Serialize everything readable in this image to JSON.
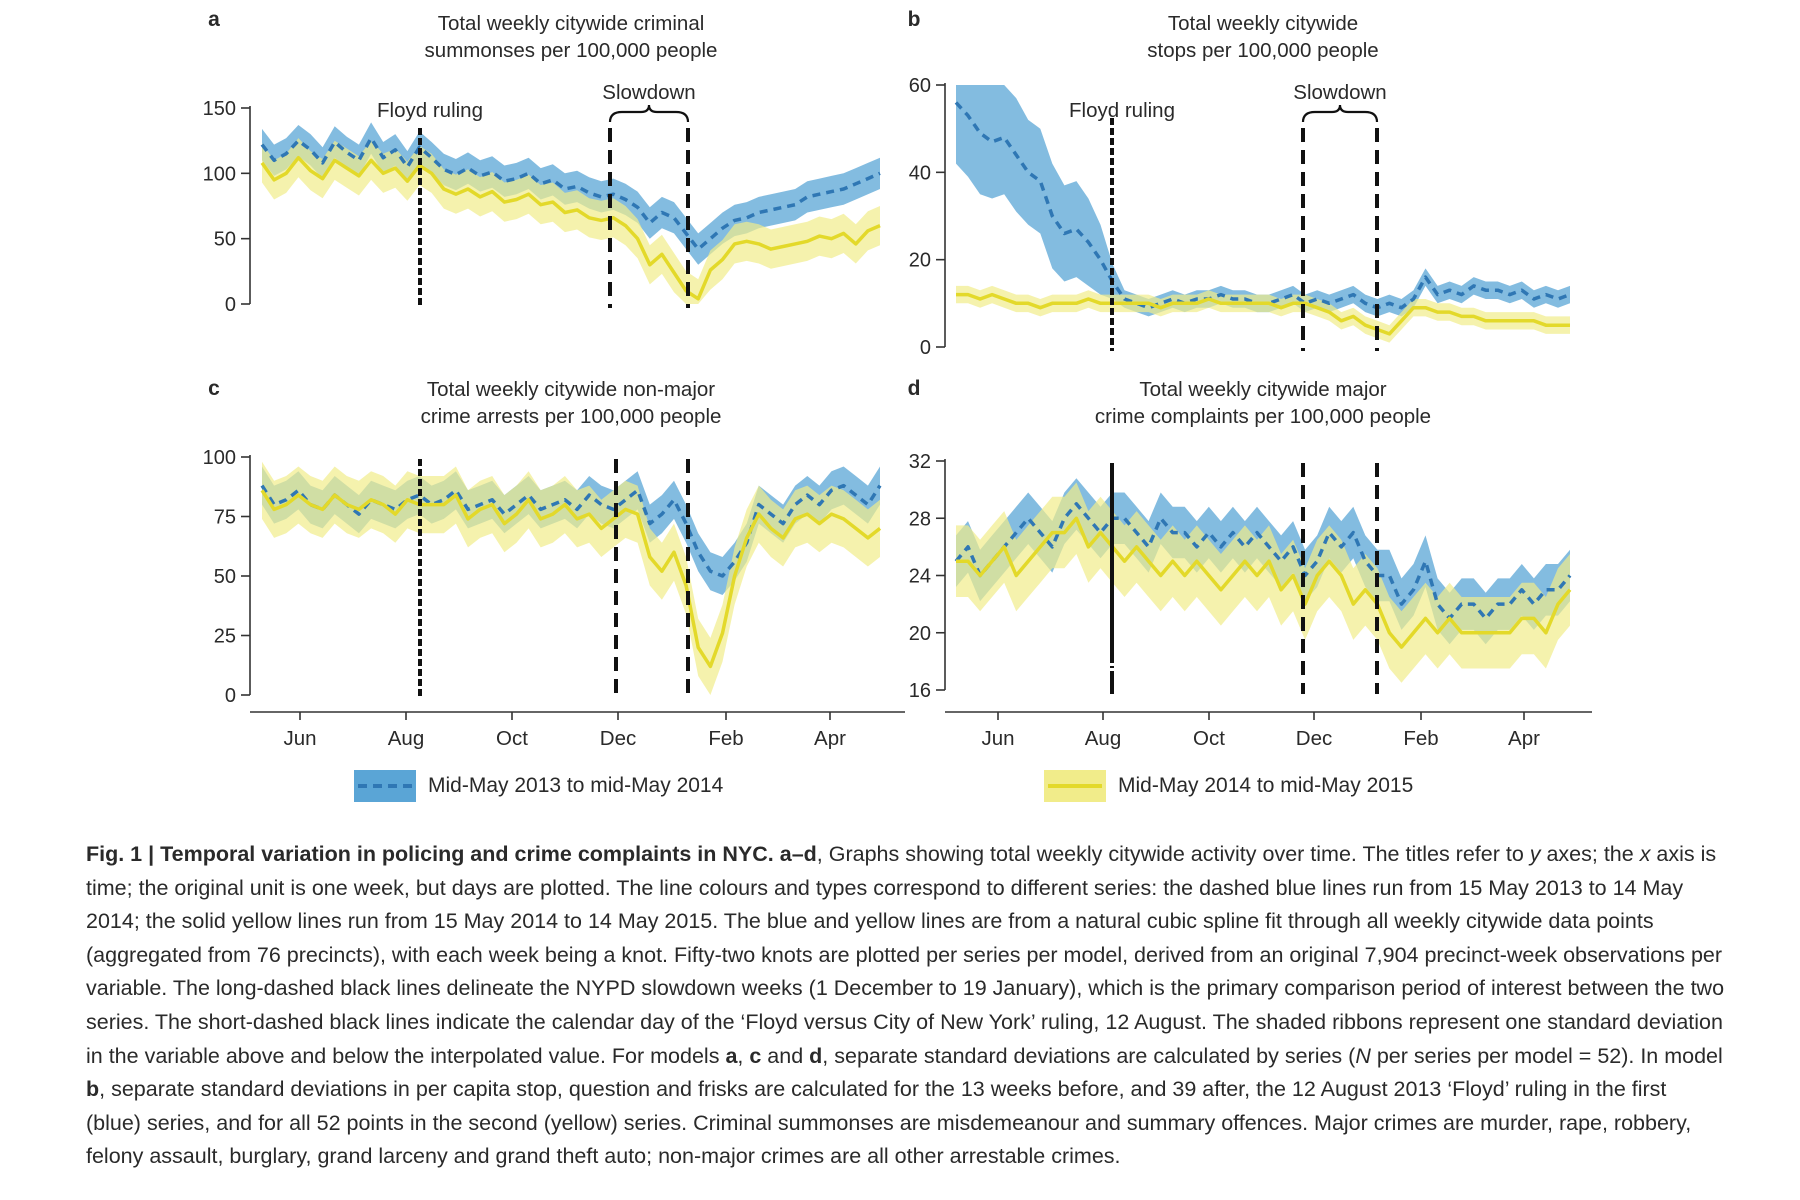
{
  "figure": {
    "panels": [
      {
        "letter": "a",
        "title_line1": "Total weekly citywide criminal",
        "title_line2": "summonses per 100,000 people",
        "event_labels": {
          "floyd": "Floyd ruling",
          "slowdown": "Slowdown"
        },
        "yticks": [
          0,
          50,
          100,
          150
        ]
      },
      {
        "letter": "b",
        "title_line1": "Total weekly citywide",
        "title_line2": "stops per 100,000 people",
        "event_labels": {
          "floyd": "Floyd ruling",
          "slowdown": "Slowdown"
        },
        "yticks": [
          0,
          20,
          40,
          60
        ]
      },
      {
        "letter": "c",
        "title_line1": "Total weekly citywide non-major",
        "title_line2": "crime arrests per 100,000 people",
        "yticks": [
          0,
          25,
          50,
          75,
          100
        ]
      },
      {
        "letter": "d",
        "title_line1": "Total weekly citywide major",
        "title_line2": "crime complaints per 100,000 people",
        "yticks": [
          16,
          20,
          24,
          28,
          32
        ]
      }
    ],
    "x_tick_labels": [
      "Jun",
      "Aug",
      "Oct",
      "Dec",
      "Feb",
      "Apr"
    ],
    "legend": {
      "series1": "Mid-May 2013 to mid-May 2014",
      "series2": "Mid-May 2014 to mid-May 2015"
    },
    "colors": {
      "blue": "#2f77b4",
      "blue_ribbon": "#5aa5d6",
      "yellow": "#e8df3f",
      "yellow_ribbon": "#f1ec8a",
      "black": "#111111"
    }
  },
  "chart_data": [
    {
      "type": "line",
      "panel": "a",
      "title": "Total weekly citywide criminal summonses per 100,000 people",
      "xlabel": "",
      "ylabel": "",
      "x_unit": "week (mid-May to mid-May)",
      "ylim": [
        0,
        150
      ],
      "annotations": [
        "Floyd ruling",
        "Slowdown"
      ],
      "series": [
        {
          "name": "Mid-May 2013 to mid-May 2014",
          "style": "dashed",
          "sd": 12,
          "values": [
            122,
            110,
            115,
            125,
            118,
            108,
            124,
            116,
            110,
            127,
            112,
            118,
            105,
            120,
            112,
            103,
            99,
            104,
            98,
            101,
            94,
            96,
            100,
            92,
            95,
            88,
            90,
            85,
            82,
            84,
            80,
            74,
            62,
            70,
            66,
            54,
            42,
            50,
            58,
            64,
            66,
            70,
            72,
            74,
            76,
            82,
            84,
            86,
            88,
            92,
            96,
            100
          ]
        },
        {
          "name": "Mid-May 2014 to mid-May 2015",
          "style": "solid",
          "sd": 15,
          "values": [
            108,
            95,
            100,
            112,
            102,
            96,
            110,
            104,
            98,
            110,
            100,
            104,
            94,
            106,
            100,
            88,
            84,
            88,
            82,
            86,
            78,
            80,
            84,
            76,
            78,
            70,
            72,
            66,
            64,
            66,
            60,
            50,
            30,
            38,
            24,
            10,
            4,
            26,
            34,
            46,
            48,
            46,
            42,
            44,
            46,
            48,
            52,
            50,
            54,
            46,
            56,
            60
          ]
        }
      ]
    },
    {
      "type": "line",
      "panel": "b",
      "title": "Total weekly citywide stops per 100,000 people",
      "xlabel": "",
      "ylabel": "",
      "ylim": [
        0,
        60
      ],
      "annotations": [
        "Floyd ruling",
        "Slowdown"
      ],
      "series": [
        {
          "name": "Mid-May 2013 to mid-May 2014",
          "style": "dashed",
          "values": [
            56,
            53,
            49,
            47,
            48,
            44,
            40,
            38,
            30,
            26,
            27,
            24,
            20,
            15,
            11,
            10,
            9,
            10,
            11,
            10,
            11,
            11,
            12,
            11,
            11,
            10,
            10,
            11,
            12,
            10,
            11,
            10,
            11,
            12,
            10,
            9,
            10,
            9,
            11,
            16,
            12,
            13,
            12,
            14,
            13,
            13,
            12,
            13,
            11,
            12,
            11,
            12
          ],
          "sd": [
            14,
            14,
            14,
            13,
            13,
            13,
            12,
            12,
            12,
            11,
            11,
            10,
            8,
            4,
            2,
            2,
            2,
            2,
            2,
            2,
            2,
            2,
            2,
            2,
            2,
            2,
            2,
            2,
            2,
            2,
            2,
            2,
            2,
            2,
            2,
            2,
            2,
            2,
            2,
            2,
            2,
            2,
            2,
            2,
            2,
            2,
            2,
            2,
            2,
            2,
            2,
            2
          ]
        },
        {
          "name": "Mid-May 2014 to mid-May 2015",
          "style": "solid",
          "sd": 2,
          "values": [
            12,
            12,
            11,
            12,
            11,
            10,
            10,
            9,
            10,
            10,
            10,
            11,
            10,
            10,
            10,
            10,
            10,
            9,
            10,
            10,
            10,
            11,
            10,
            10,
            10,
            10,
            10,
            9,
            10,
            10,
            9,
            8,
            6,
            7,
            5,
            4,
            3,
            6,
            9,
            9,
            8,
            8,
            7,
            7,
            6,
            6,
            6,
            6,
            6,
            5,
            5,
            5
          ]
        }
      ]
    },
    {
      "type": "line",
      "panel": "c",
      "title": "Total weekly citywide non-major crime arrests per 100,000 people",
      "xlabel": "",
      "ylabel": "",
      "ylim": [
        0,
        100
      ],
      "series": [
        {
          "name": "Mid-May 2013 to mid-May 2014",
          "style": "dashed",
          "sd": 8,
          "values": [
            88,
            80,
            82,
            86,
            80,
            78,
            84,
            80,
            76,
            82,
            80,
            78,
            82,
            84,
            80,
            82,
            86,
            78,
            80,
            82,
            76,
            80,
            84,
            78,
            80,
            82,
            78,
            84,
            80,
            78,
            82,
            86,
            72,
            76,
            82,
            72,
            60,
            52,
            50,
            56,
            64,
            80,
            76,
            72,
            80,
            84,
            80,
            86,
            88,
            84,
            80,
            88
          ]
        },
        {
          "name": "Mid-May 2014 to mid-May 2015",
          "style": "solid",
          "sd": 12,
          "values": [
            86,
            78,
            80,
            84,
            80,
            78,
            84,
            80,
            78,
            82,
            80,
            76,
            82,
            80,
            80,
            80,
            84,
            74,
            78,
            80,
            72,
            76,
            82,
            74,
            76,
            80,
            74,
            76,
            70,
            74,
            78,
            76,
            58,
            52,
            60,
            46,
            20,
            12,
            26,
            50,
            66,
            76,
            70,
            66,
            74,
            76,
            72,
            76,
            74,
            70,
            66,
            70
          ]
        }
      ]
    },
    {
      "type": "line",
      "panel": "d",
      "title": "Total weekly citywide major crime complaints per 100,000 people",
      "xlabel": "",
      "ylabel": "",
      "ylim": [
        16,
        32
      ],
      "series": [
        {
          "name": "Mid-May 2013 to mid-May 2014",
          "style": "dashed",
          "sd": 1.8,
          "values": [
            25,
            26,
            24,
            25,
            26,
            27,
            28,
            27,
            26,
            28,
            29,
            28,
            27,
            28,
            28,
            27,
            26,
            28,
            27,
            27,
            26,
            27,
            26,
            27,
            26,
            27,
            26,
            25,
            26,
            24,
            25,
            27,
            26,
            27,
            25,
            24,
            24,
            22,
            23,
            25,
            22,
            21,
            22,
            22,
            21,
            22,
            22,
            23,
            22,
            23,
            23,
            24
          ]
        },
        {
          "name": "Mid-May 2014 to mid-May 2015",
          "style": "solid",
          "sd": 2.5,
          "values": [
            25,
            25,
            24,
            25,
            26,
            24,
            25,
            26,
            27,
            27,
            28,
            26,
            27,
            26,
            25,
            26,
            25,
            24,
            25,
            24,
            25,
            24,
            23,
            24,
            25,
            24,
            25,
            23,
            24,
            22,
            24,
            25,
            24,
            22,
            23,
            22,
            20,
            19,
            20,
            21,
            20,
            21,
            20,
            20,
            20,
            20,
            20,
            21,
            21,
            20,
            22,
            23
          ]
        }
      ]
    }
  ],
  "caption": {
    "label": "Fig. 1 | Temporal variation in policing and crime complaints in NYC. a–d",
    "s1": ", Graphs showing total weekly citywide activity over time. The titles refer to ",
    "y_axes": "y",
    "s2": " axes; the ",
    "x_axis": "x",
    "s3": " axis is time; the original unit is one week, but days are plotted. The line colours and types correspond to different series: the dashed blue lines run from 15 May 2013 to 14 May 2014; the solid yellow lines run from 15 May 2014 to 14 May 2015. The blue and yellow lines are from a natural cubic spline fit through all weekly citywide data points (aggregated from 76 precincts), with each week being a knot. Fifty-two knots are plotted per series per model, derived from an original 7,904 precinct-week observations per variable. The long-dashed black lines delineate the NYPD slowdown weeks (1 December to 19 January), which is the primary comparison period of interest between the two series. The short-dashed black lines indicate the calendar day of the ‘Floyd versus City of New York’ ruling, 12 August. The shaded ribbons represent one standard deviation in the variable above and below the interpolated value. For models ",
    "m_a": "a",
    "s4": ", ",
    "m_c": "c",
    "s5": " and ",
    "m_d": "d",
    "s6": ", separate standard deviations are calculated by series (",
    "n_var": "N",
    "s7": " per series per model = 52). In model ",
    "m_b": "b",
    "s8": ", separate standard deviations in per capita stop, question and frisks are calculated for the 13 weeks before, and 39 after, the 12 August 2013 ‘Floyd’ ruling in the first (blue) series, and for all 52 points in the second (yellow) series. Criminal summonses are misdemeanour and summary offences. Major crimes are murder, rape, robbery, felony assault, burglary, grand larceny and grand theft auto; non-major crimes are all other arrestable crimes."
  }
}
